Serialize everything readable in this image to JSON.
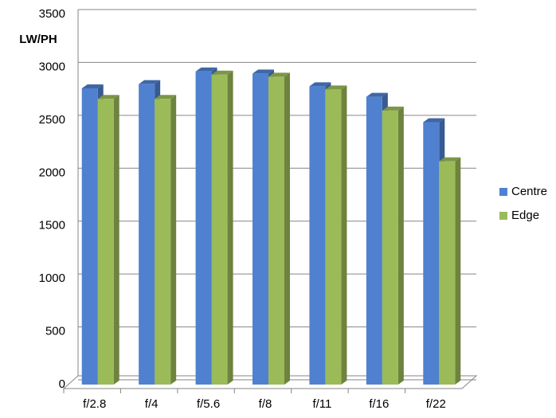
{
  "chart_data": {
    "type": "bar",
    "y_label": "LW/PH",
    "categories": [
      "f/2.8",
      "f/4",
      "f/5.6",
      "f/8",
      "f/11",
      "f/16",
      "f/22"
    ],
    "series": [
      {
        "name": "Centre",
        "color": "#4f81d0",
        "values": [
          2800,
          2840,
          2960,
          2940,
          2820,
          2720,
          2480
        ]
      },
      {
        "name": "Edge",
        "color": "#9bbb59",
        "values": [
          2700,
          2700,
          2930,
          2910,
          2790,
          2590,
          2110
        ]
      }
    ],
    "ylim": [
      0,
      3500
    ],
    "yticks": [
      0,
      500,
      1000,
      1500,
      2000,
      2500,
      3000,
      3500
    ],
    "grid": true,
    "legend": "right"
  }
}
